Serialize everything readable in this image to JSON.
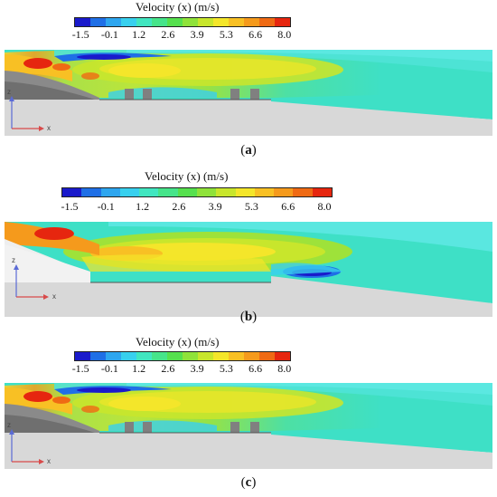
{
  "legend": {
    "title": "Velocity (x) (m/s)",
    "ticks": [
      "-1.5",
      "-0.1",
      "1.2",
      "2.6",
      "3.9",
      "5.3",
      "6.6",
      "8.0"
    ],
    "colors": [
      "#1a1acb",
      "#1f6fe6",
      "#2ea6ef",
      "#38d0ee",
      "#41e6c0",
      "#46e48a",
      "#56e04e",
      "#8fe23a",
      "#c8e62c",
      "#f4e62a",
      "#f8c024",
      "#f59a1c",
      "#ef6a14",
      "#e6260f"
    ]
  },
  "panels": [
    {
      "caption_open": "(",
      "caption_letter": "a",
      "caption_close": ")",
      "axis_z": "z",
      "axis_x": "x"
    },
    {
      "caption_open": "(",
      "caption_letter": "b",
      "caption_close": ")",
      "axis_z": "z",
      "axis_x": "x"
    },
    {
      "caption_open": "(",
      "caption_letter": "c",
      "caption_close": ")",
      "axis_z": "z",
      "axis_x": "x"
    }
  ]
}
